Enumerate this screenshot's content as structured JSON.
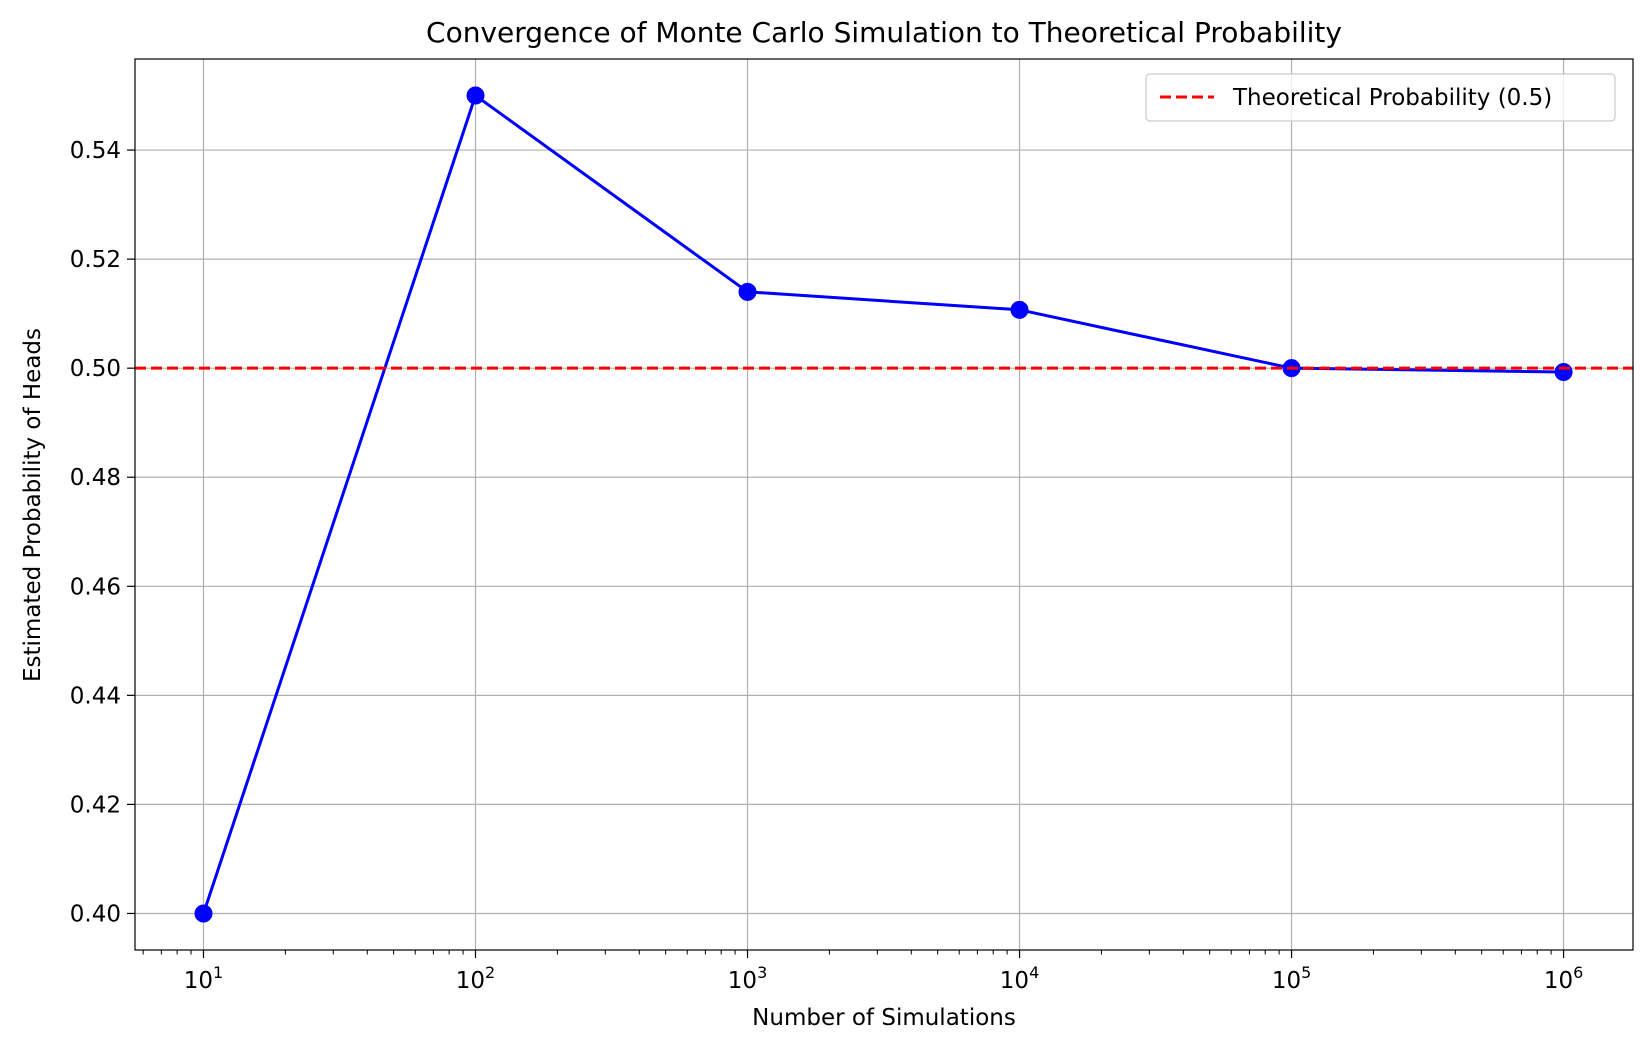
{
  "chart_data": {
    "type": "line",
    "title": "Convergence of Monte Carlo Simulation to Theoretical Probability",
    "xlabel": "Number of Simulations",
    "ylabel": "Estimated Probability of Heads",
    "x_scale": "log",
    "xlim": [
      5.6,
      1800000
    ],
    "ylim": [
      0.3933,
      0.5567
    ],
    "grid": true,
    "legend_position": "upper right",
    "x_ticks": [
      {
        "value": 10,
        "base": "10",
        "exp": "1"
      },
      {
        "value": 100,
        "base": "10",
        "exp": "2"
      },
      {
        "value": 1000,
        "base": "10",
        "exp": "3"
      },
      {
        "value": 10000,
        "base": "10",
        "exp": "4"
      },
      {
        "value": 100000,
        "base": "10",
        "exp": "5"
      },
      {
        "value": 1000000,
        "base": "10",
        "exp": "6"
      }
    ],
    "y_ticks": [
      "0.40",
      "0.42",
      "0.44",
      "0.46",
      "0.48",
      "0.50",
      "0.52",
      "0.54"
    ],
    "series": [
      {
        "color": "#0000ff",
        "marker": "circle",
        "x": [
          10,
          100,
          1000,
          10000,
          100000,
          1000000
        ],
        "y": [
          0.4,
          0.55,
          0.514,
          0.5107,
          0.5,
          0.4993
        ]
      }
    ],
    "reference_lines": [
      {
        "name": "Theoretical Probability (0.5)",
        "y": 0.5,
        "color": "#ff0000",
        "style": "dashed"
      }
    ]
  }
}
